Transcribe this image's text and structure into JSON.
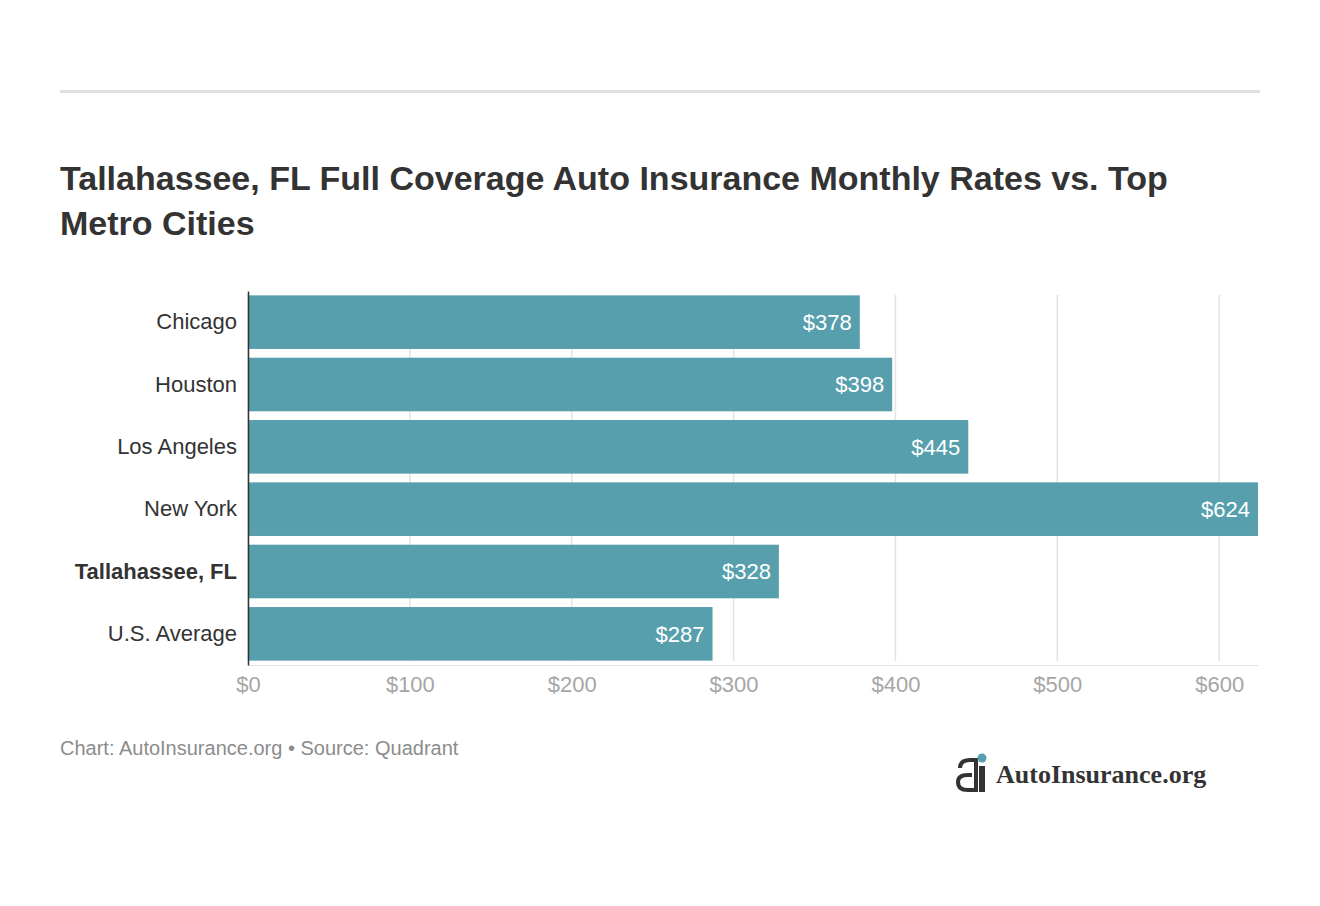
{
  "chart_data": {
    "type": "bar",
    "orientation": "horizontal",
    "title": "Tallahassee, FL Full Coverage Auto Insurance Monthly Rates vs. Top Metro Cities",
    "categories": [
      "Chicago",
      "Houston",
      "Los Angeles",
      "New York",
      "Tallahassee, FL",
      "U.S. Average"
    ],
    "values": [
      378,
      398,
      445,
      624,
      328,
      287
    ],
    "value_labels": [
      "$378",
      "$398",
      "$445",
      "$624",
      "$328",
      "$287"
    ],
    "color": "#589fae",
    "xlim": [
      0,
      624
    ],
    "xticks": [
      {
        "value": 0,
        "label": "$0"
      },
      {
        "value": 100,
        "label": "$100"
      },
      {
        "value": 200,
        "label": "$200"
      },
      {
        "value": 300,
        "label": "$300"
      },
      {
        "value": 400,
        "label": "$400"
      },
      {
        "value": 500,
        "label": "$500"
      },
      {
        "value": 600,
        "label": "$600"
      }
    ],
    "grid": true,
    "data_labels": true,
    "source": "Chart: AutoInsurance.org • Source: Quadrant",
    "brand": "AutoInsurance.org"
  }
}
